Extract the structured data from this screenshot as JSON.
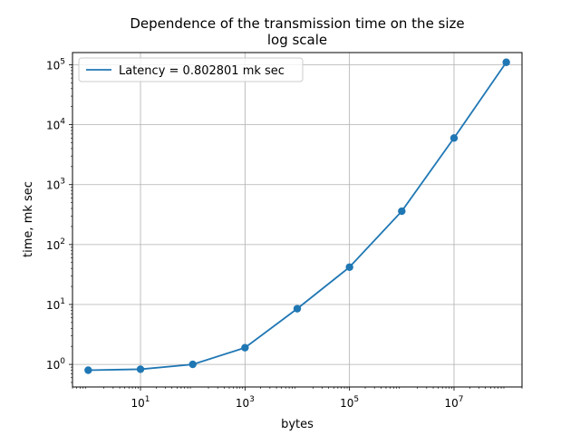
{
  "chart_data": {
    "type": "line",
    "title": "Dependence of the transmission time on the size",
    "subtitle": "log scale",
    "xlabel": "bytes",
    "ylabel": "time, mk sec",
    "xscale": "log",
    "yscale": "log",
    "xlim": [
      0.5,
      200000000
    ],
    "ylim": [
      0.42,
      160000
    ],
    "grid": true,
    "legend_position": "top-left",
    "x_ticks": [
      {
        "value": 10,
        "base": "10",
        "exp": "1"
      },
      {
        "value": 1000,
        "base": "10",
        "exp": "3"
      },
      {
        "value": 100000,
        "base": "10",
        "exp": "5"
      },
      {
        "value": 10000000,
        "base": "10",
        "exp": "7"
      }
    ],
    "y_ticks": [
      {
        "value": 1,
        "base": "10",
        "exp": "0"
      },
      {
        "value": 10,
        "base": "10",
        "exp": "1"
      },
      {
        "value": 100,
        "base": "10",
        "exp": "2"
      },
      {
        "value": 1000,
        "base": "10",
        "exp": "3"
      },
      {
        "value": 10000,
        "base": "10",
        "exp": "4"
      },
      {
        "value": 100000,
        "base": "10",
        "exp": "5"
      }
    ],
    "series": [
      {
        "name": "Latency = 0.802801 mk sec",
        "color": "#1f77b4",
        "marker": "circle",
        "x": [
          1,
          10,
          100,
          1000,
          10000,
          100000,
          1000000,
          10000000,
          100000000
        ],
        "y": [
          0.8,
          0.83,
          1.0,
          1.9,
          8.5,
          42,
          360,
          6000,
          110000
        ]
      }
    ]
  }
}
